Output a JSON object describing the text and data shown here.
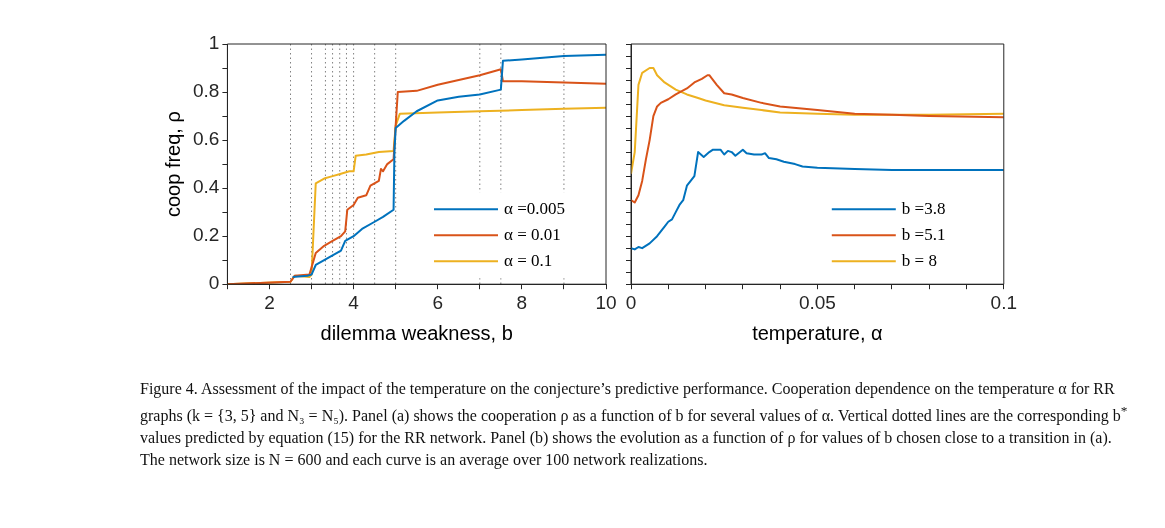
{
  "chart_data": [
    {
      "type": "line",
      "xlabel": "dilemma weakness, b",
      "ylabel": "coop freq, ρ",
      "xlim": [
        1,
        10
      ],
      "ylim": [
        0,
        1
      ],
      "xticks": [
        {
          "value": 1,
          "label": null
        },
        2,
        {
          "value": 3,
          "label": null
        },
        4,
        {
          "value": 5,
          "label": null
        },
        6,
        {
          "value": 7,
          "label": null
        },
        8,
        {
          "value": 9,
          "label": null
        },
        10
      ],
      "yticks": [
        0,
        {
          "value": 0.1,
          "label": null
        },
        0.2,
        {
          "value": 0.3,
          "label": null
        },
        0.4,
        {
          "value": 0.5,
          "label": null
        },
        0.6,
        {
          "value": 0.7,
          "label": null
        },
        0.8,
        {
          "value": 0.9,
          "label": null
        },
        1
      ],
      "legend": "bottom right",
      "marker": "none",
      "line_style": "solid",
      "ref_lines": [
        {
          "axis": "x",
          "value": 2.5,
          "color": "#808080",
          "line_style": "dotted"
        },
        {
          "axis": "x",
          "value": 3,
          "color": "#808080",
          "line_style": "dotted"
        },
        {
          "axis": "x",
          "value": 3.33,
          "color": "#808080",
          "line_style": "dotted"
        },
        {
          "axis": "x",
          "value": 3.5,
          "color": "#808080",
          "line_style": "dotted"
        },
        {
          "axis": "x",
          "value": 3.67,
          "color": "#808080",
          "line_style": "dotted"
        },
        {
          "axis": "x",
          "value": 3.83,
          "color": "#808080",
          "line_style": "dotted"
        },
        {
          "axis": "x",
          "value": 4,
          "color": "#808080",
          "line_style": "dotted"
        },
        {
          "axis": "x",
          "value": 4.5,
          "color": "#808080",
          "line_style": "dotted"
        },
        {
          "axis": "x",
          "value": 5,
          "color": "#808080",
          "line_style": "dotted"
        },
        {
          "axis": "x",
          "value": 7,
          "color": "#808080",
          "line_style": "dotted"
        },
        {
          "axis": "x",
          "value": 7.5,
          "color": "#808080",
          "line_style": "dotted"
        },
        {
          "axis": "x",
          "value": 9,
          "color": "#808080",
          "line_style": "dotted"
        }
      ],
      "series": [
        {
          "name": "α =0.005",
          "color": "#0072bd",
          "x": [
            2.55,
            2.9,
            3,
            3.1,
            3.3,
            3.5,
            3.7,
            3.8,
            4,
            4.2,
            4.5,
            4.7,
            4.95,
            4.97,
            5,
            5.2,
            5.5,
            6,
            6.5,
            7,
            7.5,
            7.55,
            8,
            9,
            10
          ],
          "values": [
            0.03,
            0.035,
            0.04,
            0.08,
            0.1,
            0.12,
            0.14,
            0.18,
            0.2,
            0.23,
            0.26,
            0.28,
            0.31,
            0.55,
            0.65,
            0.68,
            0.72,
            0.765,
            0.78,
            0.79,
            0.81,
            0.93,
            0.935,
            0.95,
            0.955
          ]
        },
        {
          "name": "α = 0.01",
          "color": "#d95319",
          "x": [
            1,
            2.5,
            2.6,
            2.95,
            3.05,
            3.1,
            3.3,
            3.5,
            3.7,
            3.8,
            3.85,
            4,
            4.1,
            4.3,
            4.4,
            4.6,
            4.65,
            4.7,
            4.8,
            4.95,
            5.05,
            5.5,
            6,
            6.5,
            7,
            7.4,
            7.5,
            7.55,
            8,
            9,
            10
          ],
          "values": [
            0,
            0.01,
            0.035,
            0.04,
            0.1,
            0.13,
            0.16,
            0.18,
            0.2,
            0.22,
            0.31,
            0.33,
            0.36,
            0.37,
            0.41,
            0.43,
            0.48,
            0.47,
            0.5,
            0.52,
            0.8,
            0.805,
            0.83,
            0.85,
            0.87,
            0.89,
            0.895,
            0.845,
            0.845,
            0.84,
            0.835
          ]
        },
        {
          "name": "α = 0.1",
          "color": "#edb120",
          "x": [
            1,
            2.5,
            2.6,
            2.95,
            3,
            3.1,
            3.3,
            3.5,
            3.7,
            3.9,
            4,
            4.05,
            4.3,
            4.6,
            4.95,
            5,
            5.1,
            6,
            7,
            8,
            9,
            10
          ],
          "values": [
            0,
            0.01,
            0.035,
            0.03,
            0.04,
            0.42,
            0.44,
            0.45,
            0.46,
            0.47,
            0.47,
            0.535,
            0.54,
            0.55,
            0.555,
            0.66,
            0.71,
            0.715,
            0.72,
            0.725,
            0.73,
            0.735
          ]
        }
      ],
      "annotations": [
        "Figure 4. Assessment of the impact of the temperature on the conjecture’s predictive performance. Cooperation dependence on the temperature α for RR graphs (k = {3, 5} and N₃ = N₅). Panel (a) shows the cooperation ρ as a function of b for several values of α. Vertical dotted lines are the corresponding b$^{*}$ values predicted by equation (15) for the RR network. Panel (b) shows the evolution as a function of ρ for values of b chosen close to a transition in (a). The network size is N = 600 and each curve is an average over 100 network realizations."
      ]
    },
    {
      "type": "line",
      "xlabel": "temperature, α",
      "xlim": [
        0,
        0.1
      ],
      "ylim": [
        0,
        1
      ],
      "tick_labels": "x",
      "xticks": [
        0,
        {
          "value": 0.01,
          "label": null
        },
        {
          "value": 0.02,
          "label": null
        },
        {
          "value": 0.03,
          "label": null
        },
        {
          "value": 0.04,
          "label": null
        },
        0.05,
        {
          "value": 0.06,
          "label": null
        },
        {
          "value": 0.07,
          "label": null
        },
        {
          "value": 0.08,
          "label": null
        },
        {
          "value": 0.09,
          "label": null
        },
        0.1
      ],
      "yticks": [
        0,
        0.05,
        0.1,
        0.15,
        0.2,
        0.25,
        0.3,
        0.35,
        0.4,
        0.45,
        0.5,
        0.55,
        0.6,
        0.65,
        0.7,
        0.75,
        0.8,
        0.85,
        0.9,
        0.95,
        1
      ],
      "legend": "bottom right",
      "marker": "none",
      "line_style": "solid",
      "series": [
        {
          "name": "b =3.8",
          "color": "#0072bd",
          "x": [
            0,
            0.001,
            0.002,
            0.003,
            0.005,
            0.007,
            0.009,
            0.01,
            0.011,
            0.012,
            0.013,
            0.014,
            0.015,
            0.017,
            0.018,
            0.0195,
            0.021,
            0.022,
            0.024,
            0.025,
            0.026,
            0.027,
            0.028,
            0.03,
            0.031,
            0.033,
            0.035,
            0.036,
            0.037,
            0.039,
            0.041,
            0.044,
            0.046,
            0.05,
            0.06,
            0.07,
            0.08,
            0.09,
            0.1
          ],
          "values": [
            0.15,
            0.145,
            0.155,
            0.15,
            0.17,
            0.2,
            0.24,
            0.26,
            0.27,
            0.3,
            0.33,
            0.35,
            0.41,
            0.45,
            0.55,
            0.53,
            0.55,
            0.56,
            0.56,
            0.54,
            0.555,
            0.55,
            0.535,
            0.56,
            0.545,
            0.54,
            0.54,
            0.545,
            0.525,
            0.52,
            0.51,
            0.5,
            0.49,
            0.485,
            0.48,
            0.475,
            0.475,
            0.475,
            0.475
          ]
        },
        {
          "name": "b =5.1",
          "color": "#d95319",
          "x": [
            0,
            0.001,
            0.002,
            0.003,
            0.004,
            0.005,
            0.006,
            0.007,
            0.008,
            0.01,
            0.012,
            0.015,
            0.017,
            0.019,
            0.0205,
            0.021,
            0.023,
            0.025,
            0.027,
            0.03,
            0.035,
            0.04,
            0.05,
            0.06,
            0.07,
            0.08,
            0.1
          ],
          "values": [
            0.35,
            0.34,
            0.37,
            0.43,
            0.52,
            0.6,
            0.7,
            0.74,
            0.755,
            0.77,
            0.79,
            0.815,
            0.84,
            0.855,
            0.87,
            0.87,
            0.83,
            0.795,
            0.79,
            0.775,
            0.755,
            0.74,
            0.725,
            0.71,
            0.705,
            0.7,
            0.695
          ]
        },
        {
          "name": "b = 8",
          "color": "#edb120",
          "x": [
            0,
            0.001,
            0.002,
            0.003,
            0.005,
            0.006,
            0.007,
            0.009,
            0.012,
            0.015,
            0.018,
            0.02,
            0.025,
            0.03,
            0.035,
            0.04,
            0.05,
            0.06,
            0.07,
            0.08,
            0.1
          ],
          "values": [
            0.46,
            0.55,
            0.83,
            0.88,
            0.9,
            0.9,
            0.87,
            0.84,
            0.81,
            0.79,
            0.775,
            0.765,
            0.745,
            0.735,
            0.725,
            0.715,
            0.71,
            0.705,
            0.705,
            0.705,
            0.71
          ]
        }
      ]
    }
  ]
}
